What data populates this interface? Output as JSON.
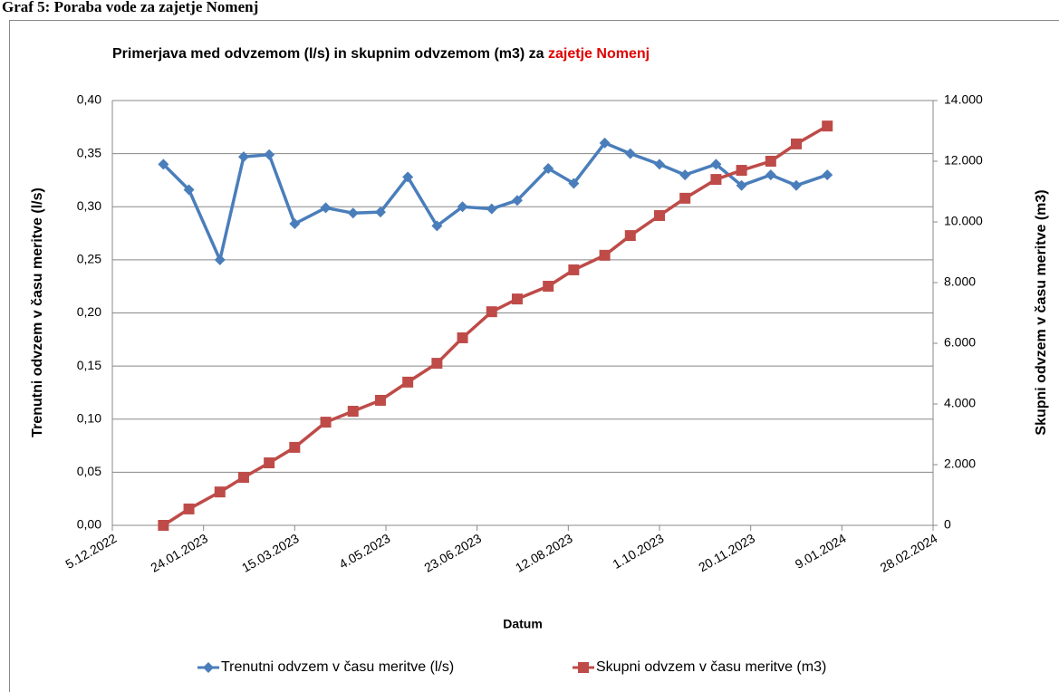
{
  "caption": "Graf 5: Poraba vode za zajetje Nomenj",
  "chart_data": {
    "type": "line",
    "title": "Primerjava med odvzemom (l/s) in skupnim odvzemom (m3) za",
    "title_highlight": "zajetje Nomenj",
    "x_label": "Datum",
    "y_label": "Trenutni odvzem v času meritve (l/s)",
    "y2_label": "Skupni odvzem v času meritve (m3)",
    "x": [
      "2023-01-02",
      "2023-01-16",
      "2023-02-02",
      "2023-02-15",
      "2023-03-01",
      "2023-03-15",
      "2023-04-01",
      "2023-04-16",
      "2023-05-01",
      "2023-05-16",
      "2023-06-01",
      "2023-06-15",
      "2023-07-01",
      "2023-07-15",
      "2023-08-01",
      "2023-08-15",
      "2023-09-01",
      "2023-09-15",
      "2023-10-01",
      "2023-10-15",
      "2023-11-01",
      "2023-11-15",
      "2023-12-01",
      "2023-12-15",
      "2024-01-01"
    ],
    "series": [
      {
        "name": "Trenutni odvzem v času meritve (l/s)",
        "color": "#4a7ebb",
        "marker": "diamond",
        "axis": "y",
        "values": [
          0.34,
          0.316,
          0.25,
          0.347,
          0.349,
          0.284,
          0.299,
          0.294,
          0.295,
          0.328,
          0.282,
          0.3,
          0.298,
          0.306,
          0.336,
          0.322,
          0.36,
          0.35,
          0.34,
          0.33,
          0.34,
          0.32,
          0.33,
          0.32,
          0.33
        ]
      },
      {
        "name": "Skupni odvzem v času meritve (m3)",
        "color": "#be4b48",
        "marker": "square",
        "axis": "y2",
        "values": [
          0,
          540,
          1100,
          1580,
          2060,
          2570,
          3400,
          3760,
          4120,
          4720,
          5340,
          6180,
          7040,
          7460,
          7880,
          8420,
          8900,
          9550,
          10210,
          10780,
          11400,
          11700,
          12000,
          12570,
          13160
        ]
      }
    ],
    "xlim": [
      "2022-12-05",
      "2024-02-28"
    ],
    "xticks": [
      {
        "value": "2022-12-05",
        "label": "5.12.2022"
      },
      {
        "value": "2023-01-24",
        "label": "24.01.2023"
      },
      {
        "value": "2023-03-15",
        "label": "15.03.2023"
      },
      {
        "value": "2023-05-04",
        "label": "4.05.2023"
      },
      {
        "value": "2023-06-23",
        "label": "23.06.2023"
      },
      {
        "value": "2023-08-12",
        "label": "12.08.2023"
      },
      {
        "value": "2023-10-01",
        "label": "1.10.2023"
      },
      {
        "value": "2023-11-20",
        "label": "20.11.2023"
      },
      {
        "value": "2024-01-09",
        "label": "9.01.2024"
      },
      {
        "value": "2024-02-28",
        "label": "28.02.2024"
      }
    ],
    "ylim": [
      0,
      0.4
    ],
    "yticks": [
      {
        "value": 0,
        "label": "0,00"
      },
      {
        "value": 0.05,
        "label": "0,05"
      },
      {
        "value": 0.1,
        "label": "0,10"
      },
      {
        "value": 0.15,
        "label": "0,15"
      },
      {
        "value": 0.2,
        "label": "0,20"
      },
      {
        "value": 0.25,
        "label": "0,25"
      },
      {
        "value": 0.3,
        "label": "0,30"
      },
      {
        "value": 0.35,
        "label": "0,35"
      },
      {
        "value": 0.4,
        "label": "0,40"
      }
    ],
    "y2lim": [
      0,
      14000
    ],
    "y2ticks": [
      0,
      {
        "value": 2000,
        "label": "2.000"
      },
      {
        "value": 4000,
        "label": "4.000"
      },
      {
        "value": 6000,
        "label": "6.000"
      },
      {
        "value": 8000,
        "label": "8.000"
      },
      {
        "value": 10000,
        "label": "10.000"
      },
      {
        "value": 12000,
        "label": "12.000"
      },
      {
        "value": 14000,
        "label": "14.000"
      }
    ],
    "grid": true,
    "legend": "bottom"
  }
}
